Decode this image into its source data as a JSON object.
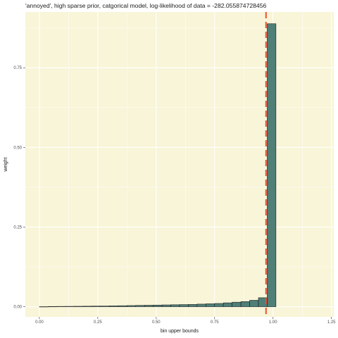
{
  "chart_data": {
    "type": "bar",
    "title": "'annoyed', high sparse prior, catgorical model, log-likelihood of data = -282.055874728456",
    "xlabel": "bin upper bounds",
    "ylabel": "weight",
    "xlim": [
      -0.06,
      1.26
    ],
    "ylim": [
      -0.032,
      0.925
    ],
    "x_ticks": [
      0.0,
      0.25,
      0.5,
      0.75,
      1.0,
      1.25
    ],
    "x_tick_labels": [
      "0.00",
      "0.25",
      "0.50",
      "0.75",
      "1.00",
      "1.25"
    ],
    "y_ticks": [
      0.0,
      0.25,
      0.5,
      0.75
    ],
    "y_tick_labels": [
      "0.00",
      "0.25",
      "0.50",
      "0.75"
    ],
    "bin_width": 0.0375,
    "x": [
      0.0375,
      0.075,
      0.1125,
      0.15,
      0.1875,
      0.225,
      0.2625,
      0.3,
      0.3375,
      0.375,
      0.4125,
      0.45,
      0.4875,
      0.525,
      0.5625,
      0.6,
      0.6375,
      0.675,
      0.7125,
      0.75,
      0.7875,
      0.825,
      0.8625,
      0.9,
      0.9375,
      0.975,
      1.0125
    ],
    "values": [
      0.0,
      0.0005,
      0.0008,
      0.001,
      0.0012,
      0.0015,
      0.0018,
      0.002,
      0.0025,
      0.003,
      0.0035,
      0.004,
      0.0045,
      0.005,
      0.0055,
      0.006,
      0.0065,
      0.007,
      0.008,
      0.009,
      0.01,
      0.012,
      0.014,
      0.016,
      0.02,
      0.028,
      0.888
    ],
    "vline": 0.97,
    "colors": {
      "panel_background": "#f8f5d8",
      "grid": "#ffffff",
      "bar_fill": "#4f7f77",
      "bar_outline": "#1c1c1c",
      "vline": "#f24c2e"
    },
    "grid": true
  }
}
